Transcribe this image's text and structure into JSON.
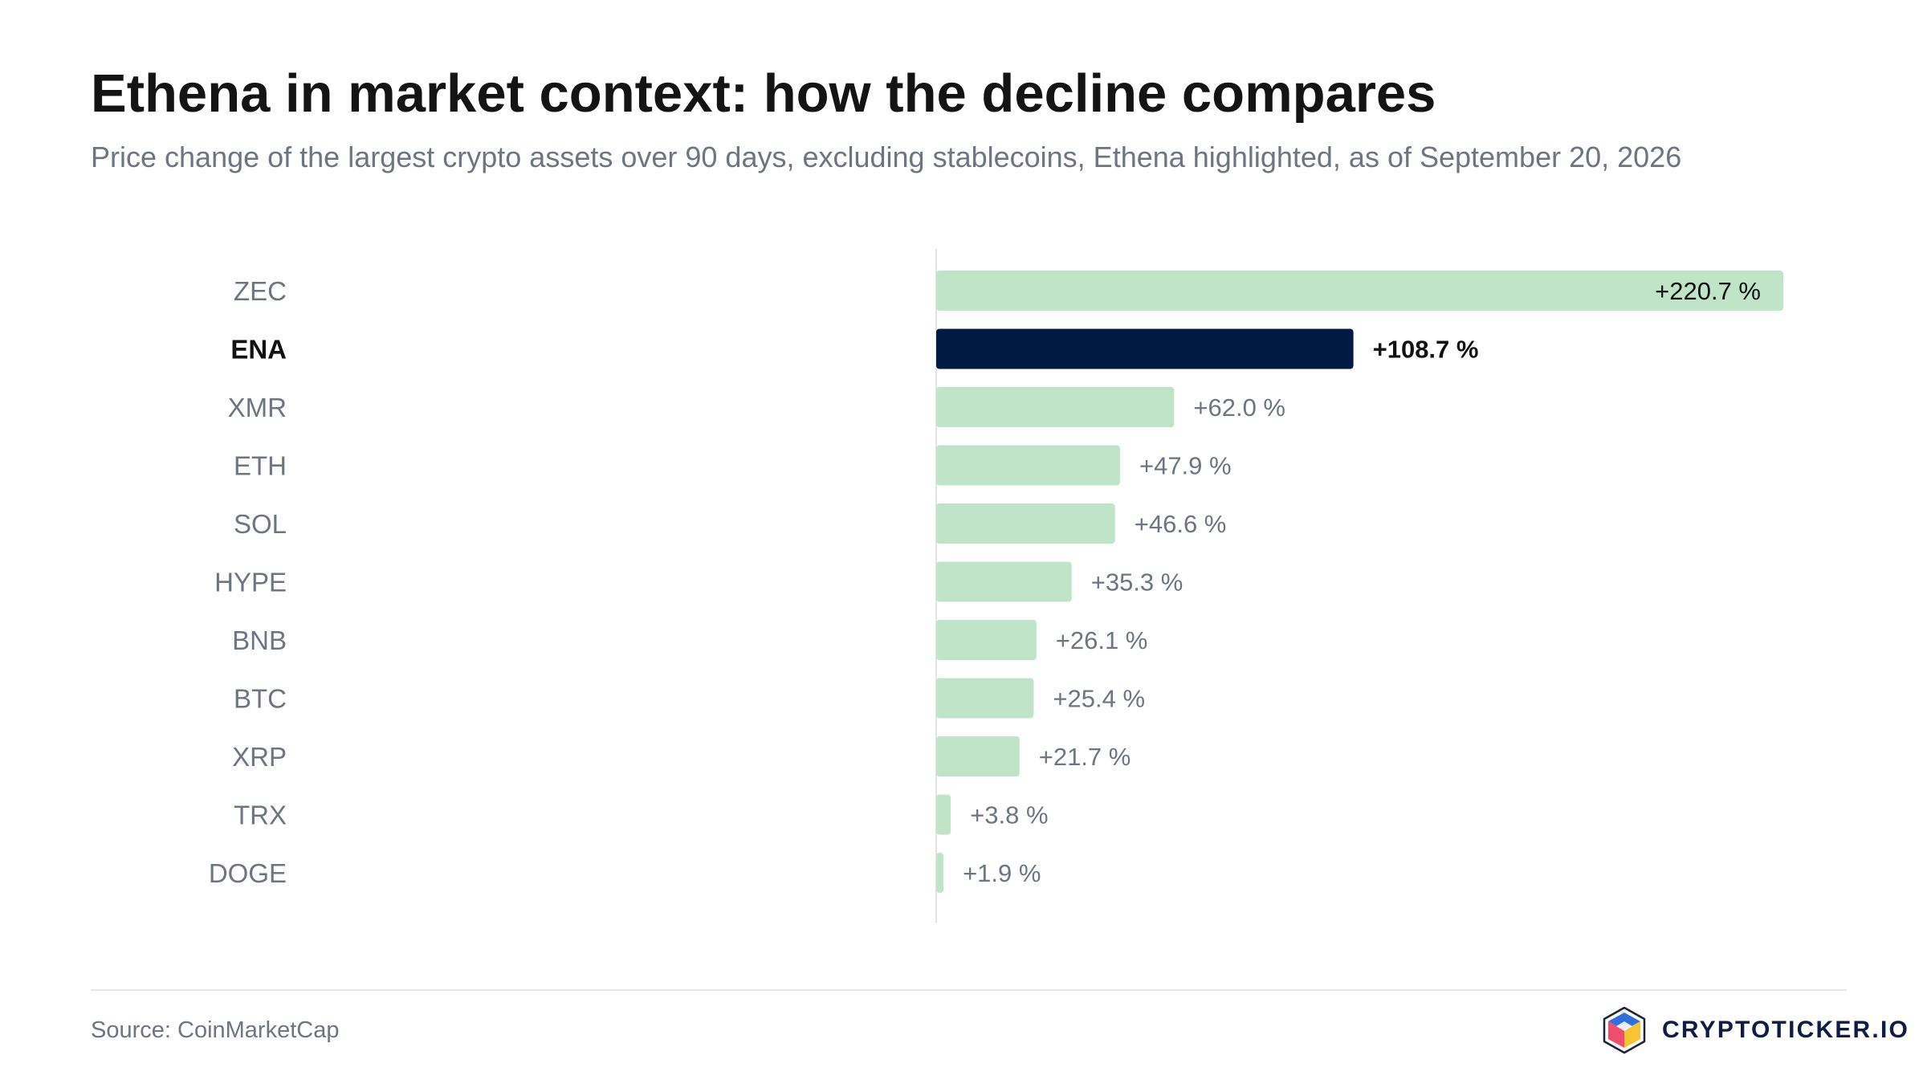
{
  "header": {
    "title": "Ethena in market context: how the decline compares",
    "subtitle": "Price change of the largest crypto assets over 90 days, excluding stablecoins, Ethena highlighted, as of September 20, 2026"
  },
  "chart_data": {
    "type": "bar",
    "orientation": "horizontal",
    "title": "Ethena in market context: how the decline compares",
    "subtitle": "Price change of the largest crypto assets over 90 days, excluding stablecoins, Ethena highlighted, as of September 20, 2026",
    "xlabel": "",
    "ylabel": "",
    "value_unit": "%",
    "categories": [
      "ZEC",
      "ENA",
      "XMR",
      "ETH",
      "SOL",
      "HYPE",
      "BNB",
      "BTC",
      "XRP",
      "TRX",
      "DOGE"
    ],
    "values": [
      220.7,
      108.7,
      62.0,
      47.9,
      46.6,
      35.3,
      26.1,
      25.4,
      21.7,
      3.8,
      1.9
    ],
    "data_labels": [
      "+220.7 %",
      "+108.7 %",
      "+62.0 %",
      "+47.9 %",
      "+46.6 %",
      "+35.3 %",
      "+26.1 %",
      "+25.4 %",
      "+21.7 %",
      "+3.8 %",
      "+1.9 %"
    ],
    "highlighted": "ENA",
    "xlim": [
      0,
      220.7
    ],
    "grid": false,
    "legend": "none",
    "colors": {
      "bar": "#c0e4c8",
      "highlight": "#001a43",
      "baseline": "#e3e3e3",
      "label": "#6e7480",
      "label_highlight": "#111111"
    }
  },
  "footer": {
    "source": "Source: CoinMarketCap",
    "brand": "CRYPTOTICKER.IO",
    "brand_logo_icon": "isometric-cube-logo-icon"
  }
}
